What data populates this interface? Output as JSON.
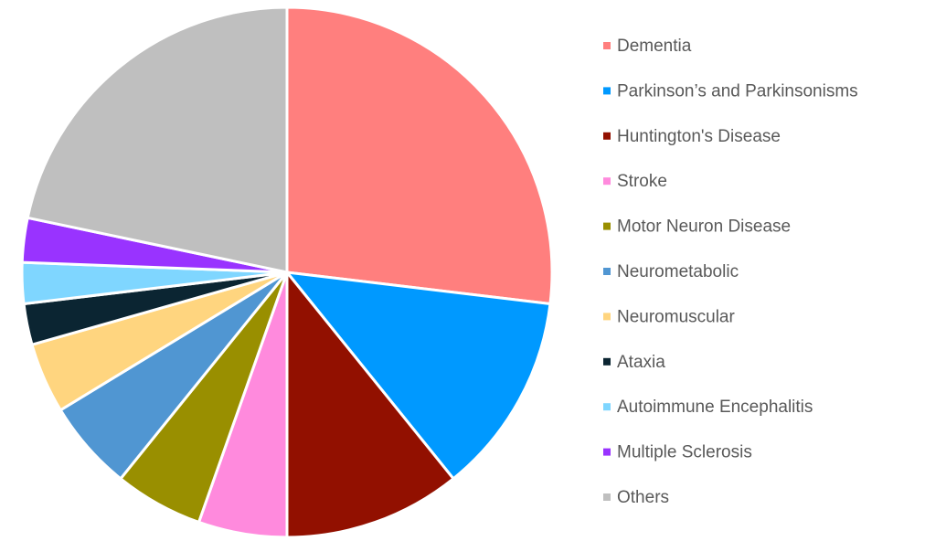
{
  "chart_data": {
    "type": "pie",
    "categories": [
      "Dementia",
      "Parkinson’s and Parkinsonisms",
      "Huntington's Disease",
      "Stroke",
      "Motor Neuron Disease",
      "Neurometabolic",
      "Neuromuscular",
      "Ataxia",
      "Autoimmune Encephalitis",
      "Multiple Sclerosis",
      "Others"
    ],
    "values": [
      26.9,
      12.3,
      10.8,
      5.4,
      5.4,
      5.5,
      4.3,
      2.5,
      2.5,
      2.7,
      21.7
    ],
    "colors": [
      "#ff7f7e",
      "#0099ff",
      "#921000",
      "#ff8add",
      "#998f00",
      "#5096d2",
      "#ffd57f",
      "#0b2532",
      "#7fd6ff",
      "#9933ff",
      "#bfbfbf"
    ],
    "legend": "right"
  }
}
